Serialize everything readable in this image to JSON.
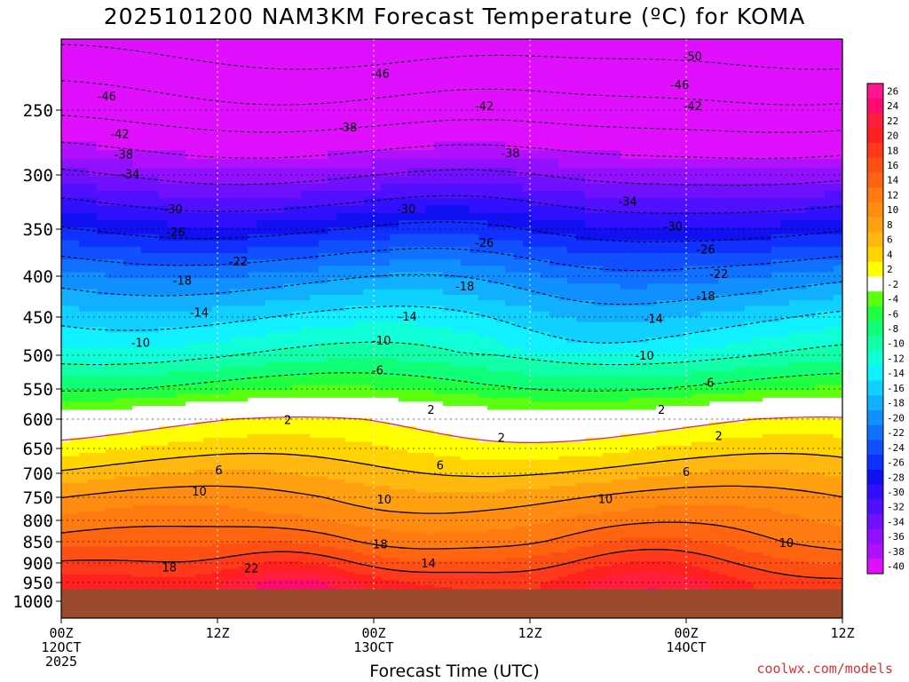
{
  "title": "2025101200 NAM3KM Forecast Temperature (ºC) for KOMA",
  "credit": "coolwx.com/models",
  "chart_data": {
    "type": "heatmap",
    "title": "2025101200 NAM3KM Forecast Temperature (ºC) for KOMA",
    "xlabel": "Forecast Time (UTC)",
    "ylabel": "",
    "x_ticks": [
      {
        "hour": 0,
        "label": "00Z",
        "sub": "12OCT",
        "sub2": "2025"
      },
      {
        "hour": 12,
        "label": "12Z",
        "sub": "",
        "sub2": ""
      },
      {
        "hour": 24,
        "label": "00Z",
        "sub": "13OCT",
        "sub2": ""
      },
      {
        "hour": 36,
        "label": "12Z",
        "sub": "",
        "sub2": ""
      },
      {
        "hour": 48,
        "label": "00Z",
        "sub": "14OCT",
        "sub2": ""
      },
      {
        "hour": 60,
        "label": "12Z",
        "sub": "",
        "sub2": ""
      }
    ],
    "xlim": [
      0,
      60
    ],
    "y_ticks": [
      250,
      300,
      350,
      400,
      450,
      500,
      550,
      600,
      650,
      700,
      750,
      800,
      850,
      900,
      950,
      1000
    ],
    "ylim": [
      200,
      1010
    ],
    "colorbar": {
      "levels": [
        26,
        24,
        22,
        20,
        18,
        16,
        14,
        12,
        10,
        8,
        6,
        4,
        2,
        -2,
        -4,
        -6,
        -8,
        -10,
        -12,
        -14,
        -16,
        -18,
        -20,
        -22,
        -24,
        -26,
        -28,
        -30,
        -32,
        -34,
        -36,
        -38,
        -40
      ],
      "colors": [
        "#ff1493",
        "#ff0a6e",
        "#ff1e3c",
        "#ff2020",
        "#ff3a1a",
        "#ff5014",
        "#ff6410",
        "#ff7a10",
        "#ff8c10",
        "#ffa010",
        "#ffb810",
        "#ffd400",
        "#ffff00",
        "#ffffff",
        "#5cff10",
        "#20ff40",
        "#10ff78",
        "#10ffa8",
        "#10ffd8",
        "#10f0ff",
        "#10d0ff",
        "#10b0ff",
        "#1090ff",
        "#1070ff",
        "#1050ff",
        "#1030ff",
        "#1010f0",
        "#3010ff",
        "#5010ff",
        "#7010ff",
        "#9010ff",
        "#b010ff",
        "#e010ff"
      ]
    },
    "contour_labels": [
      {
        "t": 48.5,
        "p": 212,
        "text": "-50"
      },
      {
        "t": 24.5,
        "p": 224,
        "text": "-46"
      },
      {
        "t": 3.5,
        "p": 240,
        "text": "-46"
      },
      {
        "t": 47.5,
        "p": 232,
        "text": "-46"
      },
      {
        "t": 4.5,
        "p": 268,
        "text": "-42"
      },
      {
        "t": 32.5,
        "p": 247,
        "text": "-42"
      },
      {
        "t": 48.5,
        "p": 247,
        "text": "-42"
      },
      {
        "t": 4.8,
        "p": 284,
        "text": "-38"
      },
      {
        "t": 22,
        "p": 263,
        "text": "-38"
      },
      {
        "t": 34.5,
        "p": 283,
        "text": "-38"
      },
      {
        "t": 5.3,
        "p": 299,
        "text": "-34"
      },
      {
        "t": 43.5,
        "p": 324,
        "text": "-34"
      },
      {
        "t": 8.6,
        "p": 331,
        "text": "-30"
      },
      {
        "t": 26.5,
        "p": 331,
        "text": "-30"
      },
      {
        "t": 47,
        "p": 347,
        "text": "-30"
      },
      {
        "t": 8.8,
        "p": 353,
        "text": "-26"
      },
      {
        "t": 32.5,
        "p": 364,
        "text": "-26"
      },
      {
        "t": 49.5,
        "p": 371,
        "text": "-26"
      },
      {
        "t": 13.6,
        "p": 384,
        "text": "-22"
      },
      {
        "t": 50.5,
        "p": 397,
        "text": "-22"
      },
      {
        "t": 9.3,
        "p": 405,
        "text": "-18"
      },
      {
        "t": 31,
        "p": 412,
        "text": "-18"
      },
      {
        "t": 49.5,
        "p": 424,
        "text": "-18"
      },
      {
        "t": 10.6,
        "p": 444,
        "text": "-14"
      },
      {
        "t": 26.6,
        "p": 449,
        "text": "-14"
      },
      {
        "t": 45.5,
        "p": 452,
        "text": "-14"
      },
      {
        "t": 6.1,
        "p": 483,
        "text": "-10"
      },
      {
        "t": 24.6,
        "p": 480,
        "text": "-10"
      },
      {
        "t": 44.8,
        "p": 500,
        "text": "-10"
      },
      {
        "t": 24.3,
        "p": 522,
        "text": "-6"
      },
      {
        "t": 49.7,
        "p": 540,
        "text": "-6"
      },
      {
        "t": 28.4,
        "p": 584,
        "text": "2"
      },
      {
        "t": 46.1,
        "p": 584,
        "text": "2"
      },
      {
        "t": 17.4,
        "p": 601,
        "text": "2"
      },
      {
        "t": 33.8,
        "p": 631,
        "text": "2"
      },
      {
        "t": 50.5,
        "p": 628,
        "text": "2"
      },
      {
        "t": 12.1,
        "p": 693,
        "text": "6"
      },
      {
        "t": 29.1,
        "p": 683,
        "text": "6"
      },
      {
        "t": 48,
        "p": 696,
        "text": "6"
      },
      {
        "t": 10.6,
        "p": 737,
        "text": "10"
      },
      {
        "t": 24.8,
        "p": 754,
        "text": "10"
      },
      {
        "t": 41.8,
        "p": 753,
        "text": "10"
      },
      {
        "t": 55.7,
        "p": 852,
        "text": "10"
      },
      {
        "t": 24.5,
        "p": 855,
        "text": "18"
      },
      {
        "t": 8.3,
        "p": 910,
        "text": "18"
      },
      {
        "t": 14.6,
        "p": 913,
        "text": "22"
      },
      {
        "t": 28.2,
        "p": 900,
        "text": "14"
      }
    ]
  },
  "labels": {
    "xlabel": "Forecast Time (UTC)"
  }
}
